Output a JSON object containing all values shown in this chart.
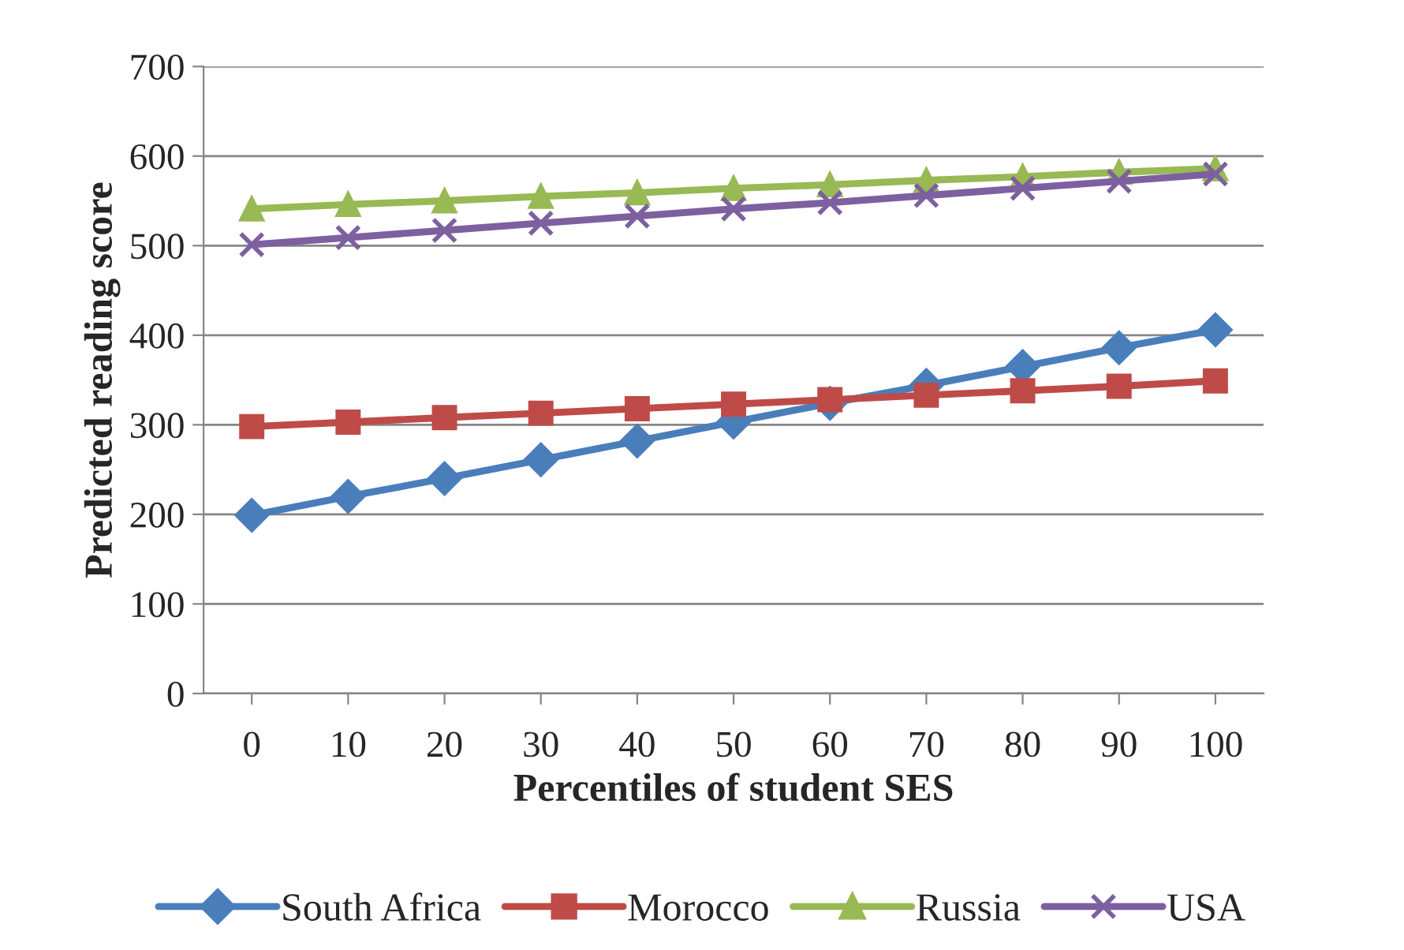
{
  "chart_data": {
    "type": "line",
    "xlabel": "Percentiles of student SES",
    "ylabel": "Predicted reading score",
    "categories": [
      "0",
      "10",
      "20",
      "30",
      "40",
      "50",
      "60",
      "70",
      "80",
      "90",
      "100"
    ],
    "series": [
      {
        "name": "South Africa",
        "color": "#4a7ebb",
        "marker": "diamond",
        "values": [
          199,
          220,
          240,
          261,
          282,
          303,
          324,
          344,
          365,
          386,
          406
        ]
      },
      {
        "name": "Morocco",
        "color": "#be4b48",
        "marker": "square",
        "values": [
          298,
          303,
          308,
          313,
          318,
          323,
          328,
          333,
          338,
          343,
          349
        ]
      },
      {
        "name": "Russia",
        "color": "#98b954",
        "marker": "triangle",
        "values": [
          541,
          546,
          550,
          555,
          559,
          564,
          568,
          573,
          577,
          582,
          586
        ]
      },
      {
        "name": "USA",
        "color": "#7d60a0",
        "marker": "cross",
        "values": [
          501,
          509,
          517,
          525,
          533,
          541,
          548,
          556,
          564,
          572,
          580
        ]
      }
    ],
    "ylim": [
      0,
      700
    ],
    "yticks": [
      0,
      100,
      200,
      300,
      400,
      500,
      600,
      700
    ],
    "grid": "y",
    "legend": "bottom",
    "line_style": "solid"
  }
}
